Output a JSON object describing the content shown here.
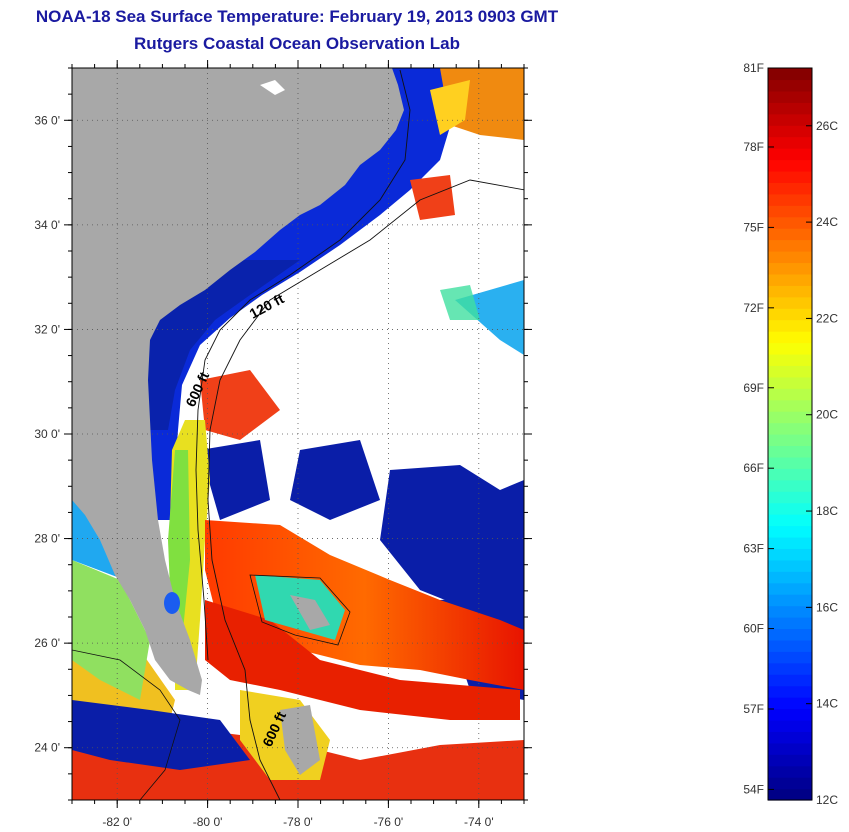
{
  "title": "NOAA-18 Sea Surface Temperature:  February 19, 2013 0903 GMT",
  "subtitle": "Rutgers Coastal Ocean Observation Lab",
  "map": {
    "lon_range": [
      -83,
      -73
    ],
    "lat_range": [
      23,
      37
    ],
    "x_ticks": [
      {
        "value": -82,
        "label": "-82 0'"
      },
      {
        "value": -80,
        "label": "-80 0'"
      },
      {
        "value": -78,
        "label": "-78 0'"
      },
      {
        "value": -76,
        "label": "-76 0'"
      },
      {
        "value": -74,
        "label": "-74 0'"
      }
    ],
    "y_ticks": [
      {
        "value": 36,
        "label": "36 0'"
      },
      {
        "value": 34,
        "label": "34 0'"
      },
      {
        "value": 32,
        "label": "32 0'"
      },
      {
        "value": 30,
        "label": "30 0'"
      },
      {
        "value": 28,
        "label": "28 0'"
      },
      {
        "value": 26,
        "label": "26 0'"
      },
      {
        "value": 24,
        "label": "24 0'"
      }
    ],
    "grid": "dotted",
    "land_color": "#a8a8a8",
    "cloud_color": "#ffffff",
    "isobath_labels": [
      {
        "text": "120 ft",
        "lon": -79.0,
        "lat": 32.2
      },
      {
        "text": "600 ft",
        "lon": -80.3,
        "lat": 30.5
      },
      {
        "text": "600 ft",
        "lon": -78.6,
        "lat": 24.0
      }
    ]
  },
  "colorbar": {
    "range_c": [
      12,
      27.2
    ],
    "f_ticks": [
      {
        "label": "81F",
        "celsius": 27.22
      },
      {
        "label": "78F",
        "celsius": 25.56
      },
      {
        "label": "75F",
        "celsius": 23.89
      },
      {
        "label": "72F",
        "celsius": 22.22
      },
      {
        "label": "69F",
        "celsius": 20.56
      },
      {
        "label": "66F",
        "celsius": 18.89
      },
      {
        "label": "63F",
        "celsius": 17.22
      },
      {
        "label": "60F",
        "celsius": 15.56
      },
      {
        "label": "57F",
        "celsius": 13.89
      },
      {
        "label": "54F",
        "celsius": 12.22
      }
    ],
    "c_ticks": [
      {
        "label": "26C",
        "celsius": 26
      },
      {
        "label": "24C",
        "celsius": 24
      },
      {
        "label": "22C",
        "celsius": 22
      },
      {
        "label": "20C",
        "celsius": 20
      },
      {
        "label": "18C",
        "celsius": 18
      },
      {
        "label": "16C",
        "celsius": 16
      },
      {
        "label": "14C",
        "celsius": 14
      },
      {
        "label": "12C",
        "celsius": 12
      }
    ],
    "colormap": "jet"
  }
}
